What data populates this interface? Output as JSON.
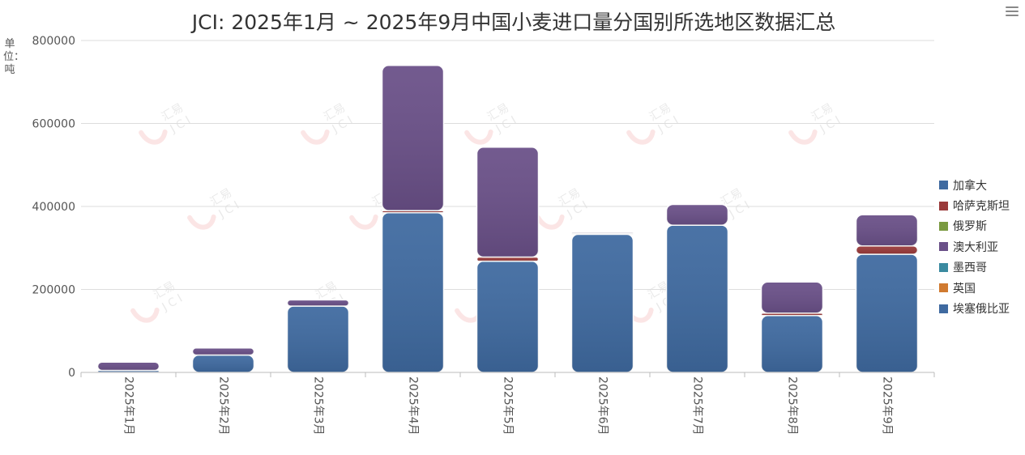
{
  "title": "JCI: 2025年1月 ~ 2025年9月中国小麦进口量分国别所选地区数据汇总",
  "unit_label": "单位：吨",
  "watermark": {
    "text": "汇易",
    "latin": "JCI"
  },
  "chart_data": {
    "type": "bar",
    "stacked": true,
    "categories": [
      "2025年1月",
      "2025年2月",
      "2025年3月",
      "2025年4月",
      "2025年5月",
      "2025年6月",
      "2025年7月",
      "2025年8月",
      "2025年9月"
    ],
    "ylim": [
      0,
      800000
    ],
    "yticks": [
      0,
      200000,
      400000,
      600000,
      800000
    ],
    "grid": true,
    "legend_position": "right",
    "series": [
      {
        "name": "加拿大",
        "color": "#3f6aa0",
        "values": [
          5000,
          42000,
          160000,
          385000,
          268000,
          333000,
          355000,
          137000,
          285000
        ]
      },
      {
        "name": "哈萨克斯坦",
        "color": "#9a3a3a",
        "values": [
          0,
          0,
          0,
          5000,
          10000,
          2000,
          0,
          6000,
          20000
        ]
      },
      {
        "name": "俄罗斯",
        "color": "#7a9a40",
        "values": [
          0,
          0,
          0,
          0,
          0,
          0,
          0,
          0,
          0
        ]
      },
      {
        "name": "澳大利亚",
        "color": "#6a5088",
        "values": [
          20000,
          17000,
          15000,
          350000,
          265000,
          3000,
          50000,
          75000,
          75000
        ]
      },
      {
        "name": "墨西哥",
        "color": "#3a8aa0",
        "values": [
          0,
          0,
          0,
          0,
          0,
          0,
          0,
          0,
          0
        ]
      },
      {
        "name": "英国",
        "color": "#d07a30",
        "values": [
          0,
          0,
          0,
          0,
          0,
          0,
          0,
          0,
          0
        ]
      },
      {
        "name": "埃塞俄比亚",
        "color": "#3f6aa0",
        "values": [
          0,
          0,
          0,
          0,
          0,
          0,
          0,
          0,
          0
        ]
      }
    ]
  }
}
